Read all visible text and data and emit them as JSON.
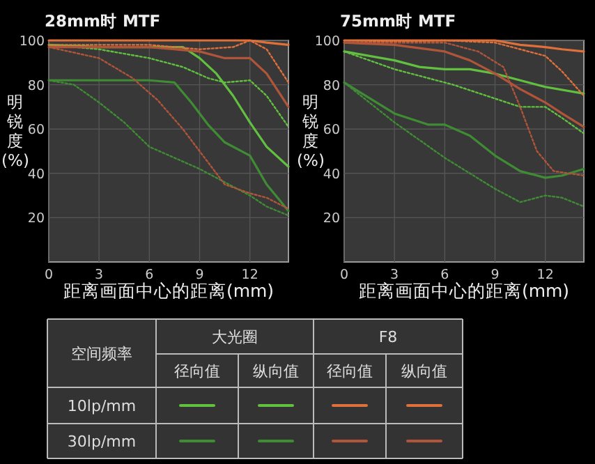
{
  "chart_data": [
    {
      "type": "line",
      "title": "28mm时 MTF",
      "xlabel": "距离画面中心的距离(mm)",
      "ylabel": "明锐度(%)",
      "xlim": [
        0,
        14.3
      ],
      "ylim": [
        0,
        100
      ],
      "xticks": [
        0,
        3,
        6,
        9,
        12
      ],
      "yticks": [
        20,
        40,
        60,
        80,
        100
      ],
      "grid": true,
      "series": [
        {
          "color": "#62c040",
          "line_style": "solid",
          "x": [
            0,
            3,
            6,
            8,
            9,
            10,
            11,
            12,
            13,
            14.3
          ],
          "values": [
            98,
            97,
            97,
            97,
            92,
            85,
            75,
            63,
            52,
            43
          ]
        },
        {
          "color": "#62c040",
          "line_style": "dotted",
          "x": [
            0,
            3,
            6,
            8,
            9.5,
            10.5,
            12,
            13,
            14.3
          ],
          "values": [
            98,
            96,
            92,
            88,
            83,
            81,
            82,
            75,
            61
          ]
        },
        {
          "color": "#3f8c35",
          "line_style": "solid",
          "x": [
            0,
            3,
            6,
            7.5,
            8.5,
            9.5,
            10.5,
            12,
            13,
            14.3
          ],
          "values": [
            82,
            82,
            82,
            81,
            72,
            62,
            54,
            48,
            35,
            23
          ]
        },
        {
          "color": "#3f8c35",
          "line_style": "dotted",
          "x": [
            0,
            1.5,
            3,
            4.5,
            6,
            7.5,
            9,
            10.5,
            12,
            13,
            14.3
          ],
          "values": [
            82,
            80,
            72,
            63,
            52,
            47,
            42,
            36,
            30,
            25,
            21
          ]
        },
        {
          "color": "#e0703a",
          "line_style": "solid",
          "x": [
            0,
            6,
            9,
            12,
            13,
            14.3
          ],
          "values": [
            100,
            100,
            100,
            100,
            99,
            98
          ]
        },
        {
          "color": "#e0703a",
          "line_style": "dotted",
          "x": [
            0,
            6,
            9,
            11,
            12,
            13,
            14.3
          ],
          "values": [
            98,
            98,
            96,
            97,
            100,
            96,
            81
          ]
        },
        {
          "color": "#b0553a",
          "line_style": "solid",
          "x": [
            0,
            6,
            9,
            10.5,
            12,
            13,
            14.3
          ],
          "values": [
            97,
            97,
            95,
            92,
            92,
            85,
            70
          ]
        },
        {
          "color": "#b0553a",
          "line_style": "dotted",
          "x": [
            0,
            3,
            5,
            6.5,
            8,
            9.5,
            10.5,
            12,
            13,
            14.3
          ],
          "values": [
            97,
            92,
            83,
            73,
            60,
            45,
            35,
            31,
            29,
            24
          ]
        }
      ]
    },
    {
      "type": "line",
      "title": "75mm时 MTF",
      "xlabel": "距离画面中心的距离(mm)",
      "ylabel": "明锐度(%)",
      "xlim": [
        0,
        14.3
      ],
      "ylim": [
        0,
        100
      ],
      "xticks": [
        0,
        3,
        6,
        9,
        12
      ],
      "yticks": [
        20,
        40,
        60,
        80,
        100
      ],
      "grid": true,
      "series": [
        {
          "color": "#62c040",
          "line_style": "solid",
          "x": [
            0,
            3,
            4.5,
            6,
            7.5,
            9,
            10.5,
            12,
            14.3
          ],
          "values": [
            95,
            91,
            88,
            87,
            87,
            85,
            82,
            79,
            76
          ]
        },
        {
          "color": "#62c040",
          "line_style": "dotted",
          "x": [
            0,
            3,
            5,
            6.5,
            8.5,
            10.5,
            12,
            13,
            14.3
          ],
          "values": [
            95,
            87,
            83,
            80,
            75,
            70,
            70,
            65,
            58
          ]
        },
        {
          "color": "#3f8c35",
          "line_style": "solid",
          "x": [
            0,
            3,
            5,
            6,
            7.5,
            9,
            10.5,
            12,
            13,
            14.3
          ],
          "values": [
            81,
            67,
            62,
            62,
            57,
            48,
            41,
            38,
            39,
            42
          ]
        },
        {
          "color": "#3f8c35",
          "line_style": "dotted",
          "x": [
            0,
            3,
            4.5,
            6,
            7.5,
            9,
            10.5,
            12,
            13,
            14.3
          ],
          "values": [
            81,
            63,
            55,
            47,
            40,
            33,
            27,
            30,
            29,
            25
          ]
        },
        {
          "color": "#e0703a",
          "line_style": "solid",
          "x": [
            0,
            6,
            9,
            10.5,
            12,
            13,
            14.3
          ],
          "values": [
            100,
            100,
            100,
            98,
            97,
            96,
            95
          ]
        },
        {
          "color": "#e0703a",
          "line_style": "dotted",
          "x": [
            0,
            6,
            9,
            10.5,
            12,
            13,
            14.3
          ],
          "values": [
            99,
            100,
            99,
            96,
            93,
            86,
            75
          ]
        },
        {
          "color": "#b0553a",
          "line_style": "solid",
          "x": [
            0,
            3,
            6,
            7.5,
            9,
            10.5,
            12,
            13,
            14.3
          ],
          "values": [
            99,
            98,
            95,
            91,
            85,
            78,
            72,
            67,
            61
          ]
        },
        {
          "color": "#b0553a",
          "line_style": "dotted",
          "x": [
            0,
            6,
            8,
            9.5,
            10.5,
            11.5,
            12.5,
            14.3
          ],
          "values": [
            99,
            99,
            95,
            88,
            70,
            50,
            41,
            39
          ]
        }
      ]
    },
    {
      "type": "other",
      "annotations": [
        "空间频率",
        "大光圈",
        "F8",
        "径向值",
        "纵向值",
        "径向值",
        "纵向值",
        "10lp/mm",
        "30lp/mm"
      ]
    }
  ]
}
